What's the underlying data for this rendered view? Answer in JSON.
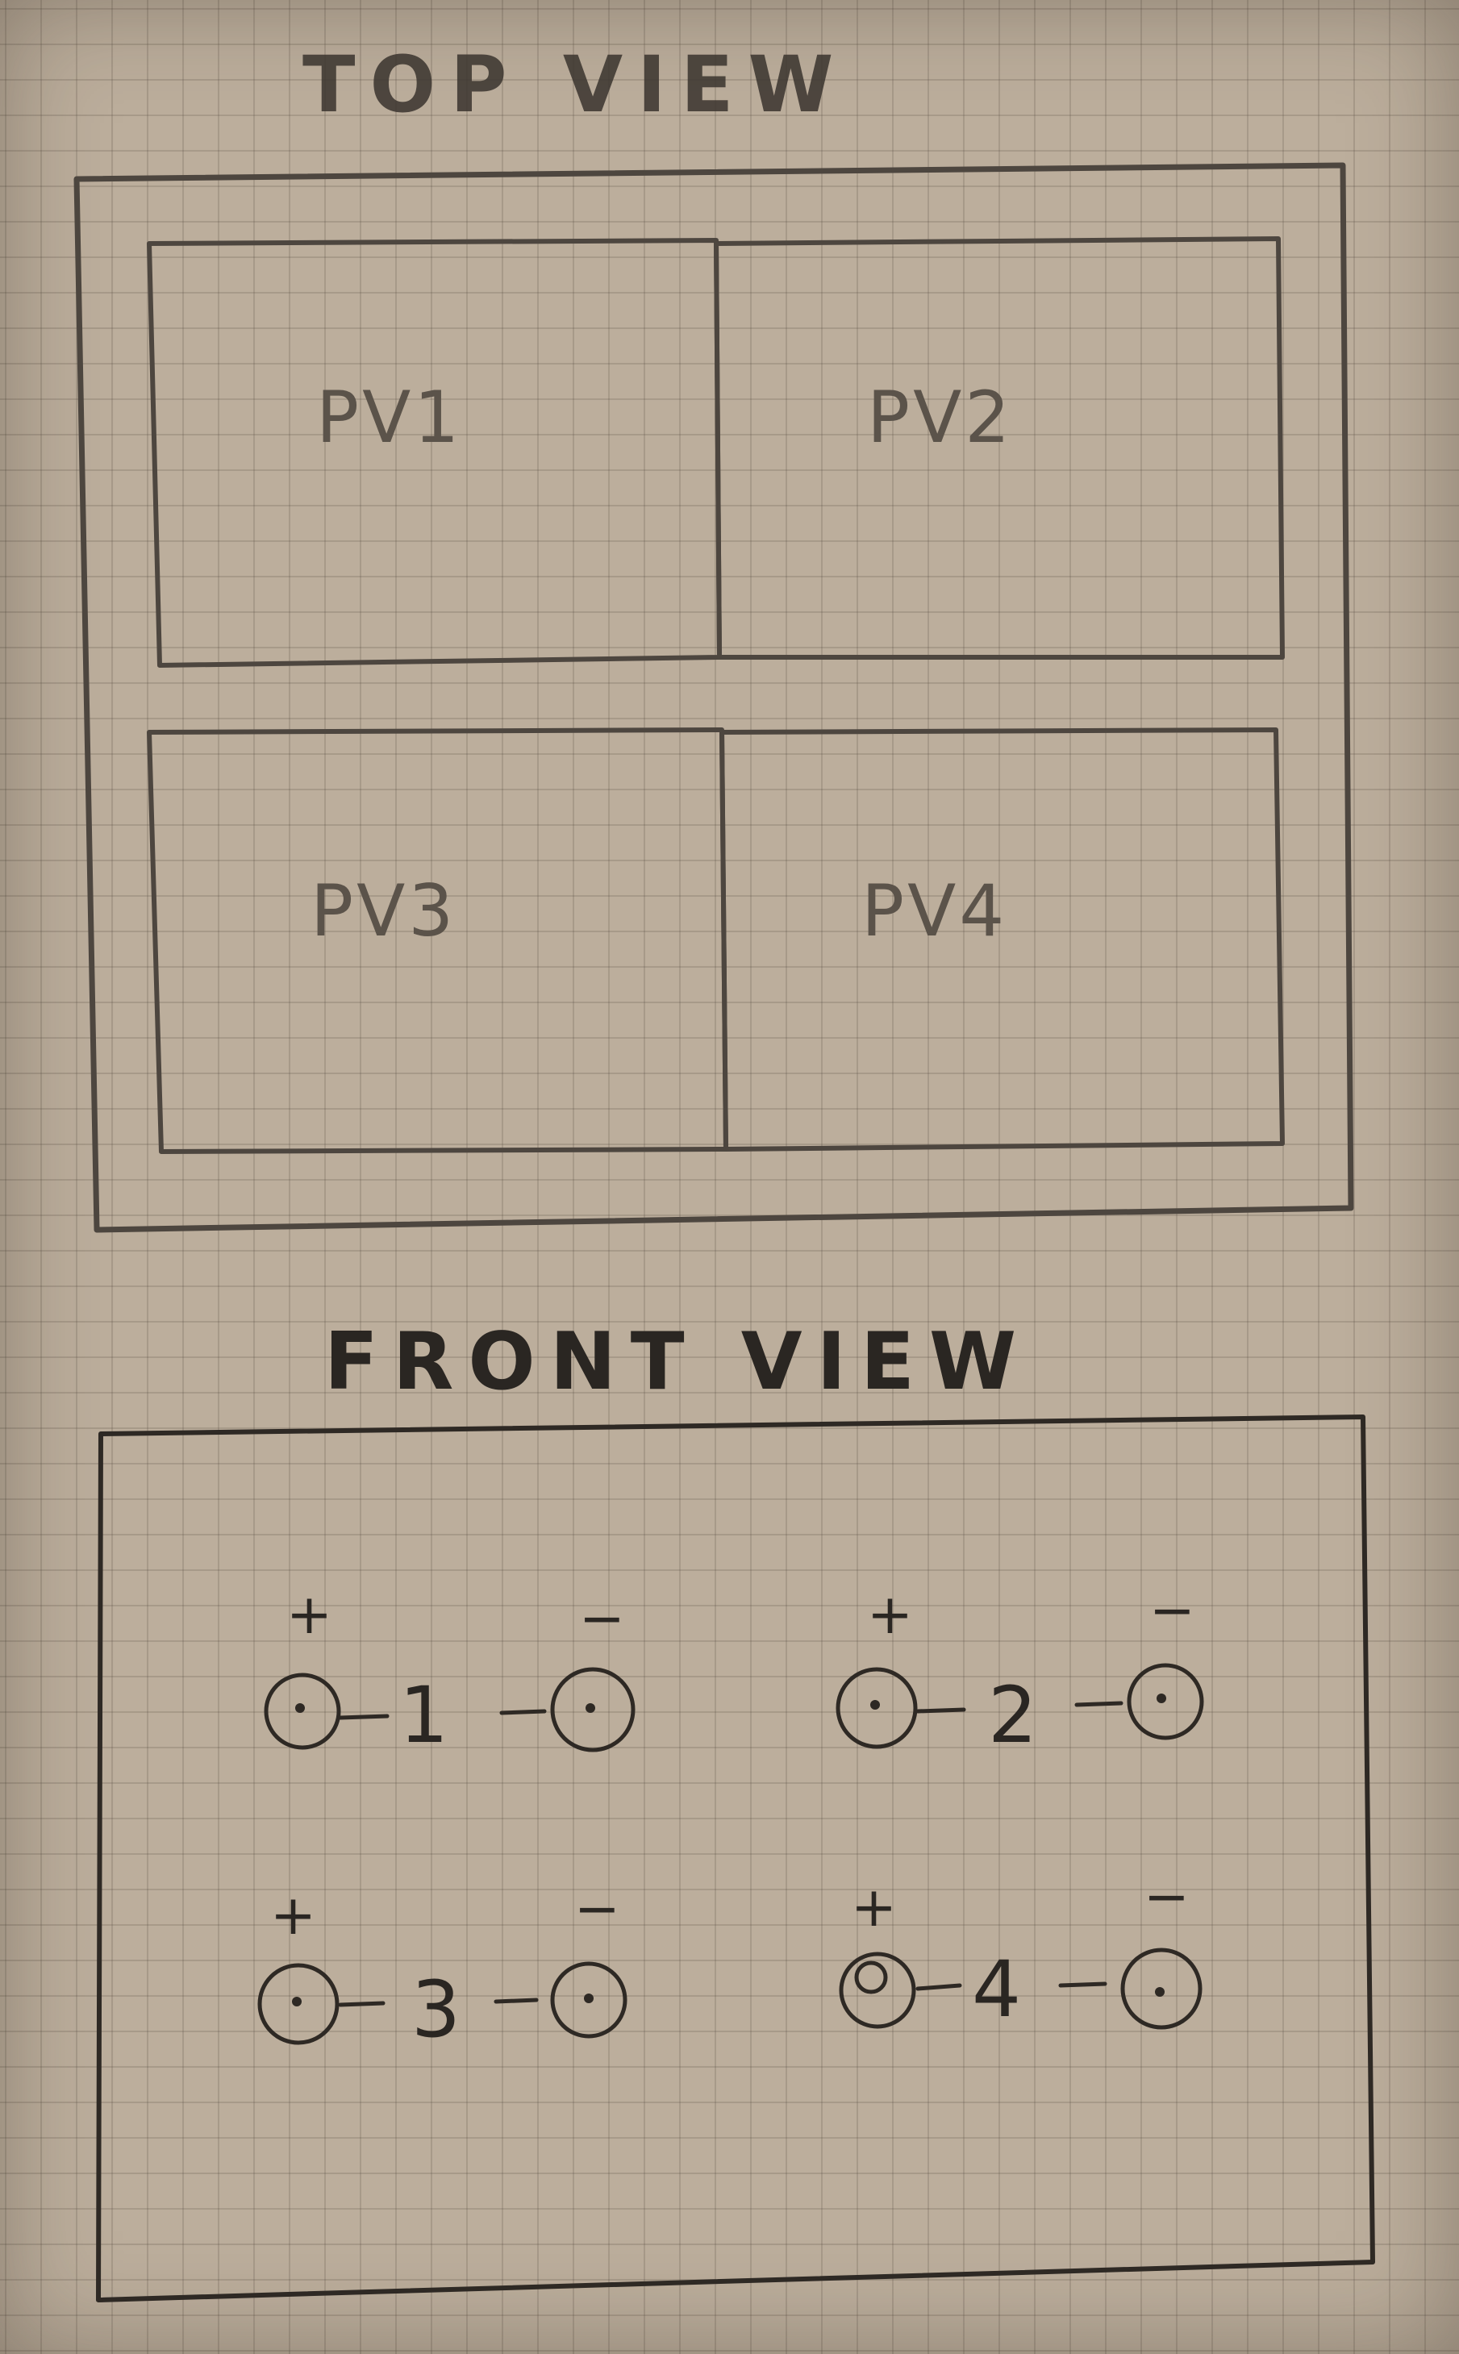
{
  "top_view": {
    "title": "TOP VIEW",
    "panels": [
      {
        "label": "PV1"
      },
      {
        "label": "PV2"
      },
      {
        "label": "PV3"
      },
      {
        "label": "PV4"
      }
    ]
  },
  "front_view": {
    "title": "FRONT VIEW",
    "connectors": [
      {
        "number": "1",
        "plus": "+",
        "minus": "−"
      },
      {
        "number": "2",
        "plus": "+",
        "minus": "−"
      },
      {
        "number": "3",
        "plus": "+",
        "minus": "−"
      },
      {
        "number": "4",
        "plus": "+",
        "minus": "−"
      }
    ]
  }
}
